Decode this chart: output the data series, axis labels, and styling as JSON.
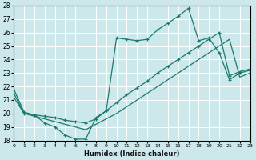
{
  "xlabel": "Humidex (Indice chaleur)",
  "bg_color": "#cde8ea",
  "grid_color": "#ffffff",
  "line_color": "#1a7a6e",
  "x_min": 0,
  "x_max": 23,
  "y_min": 18,
  "y_max": 28,
  "line1_x": [
    0,
    1,
    2,
    3,
    4,
    5,
    6,
    7,
    8,
    9,
    10,
    11,
    12,
    13,
    14,
    15,
    16,
    17,
    18,
    19,
    20,
    21,
    22,
    23
  ],
  "line1_y": [
    21.8,
    20.1,
    19.9,
    19.3,
    19.0,
    18.4,
    18.1,
    18.1,
    19.7,
    20.2,
    25.6,
    25.5,
    25.4,
    25.5,
    26.2,
    26.7,
    27.2,
    27.8,
    25.4,
    25.6,
    24.5,
    22.5,
    23.0,
    23.2
  ],
  "line2_x": [
    0,
    1,
    2,
    3,
    4,
    5,
    6,
    7,
    8,
    9,
    10,
    11,
    12,
    13,
    14,
    15,
    16,
    17,
    18,
    19,
    20,
    21,
    22,
    23
  ],
  "line2_y": [
    21.5,
    20.0,
    19.9,
    19.8,
    19.7,
    19.5,
    19.4,
    19.3,
    19.6,
    20.2,
    20.8,
    21.4,
    21.9,
    22.4,
    23.0,
    23.5,
    24.0,
    24.5,
    25.0,
    25.5,
    26.0,
    22.8,
    23.1,
    23.3
  ],
  "line3_x": [
    0,
    1,
    2,
    3,
    4,
    5,
    6,
    7,
    8,
    9,
    10,
    11,
    12,
    13,
    14,
    15,
    16,
    17,
    18,
    19,
    20,
    21,
    22,
    23
  ],
  "line3_y": [
    21.2,
    20.0,
    19.8,
    19.6,
    19.4,
    19.2,
    19.0,
    18.8,
    19.2,
    19.6,
    20.0,
    20.5,
    21.0,
    21.5,
    22.0,
    22.5,
    23.0,
    23.5,
    24.0,
    24.5,
    25.0,
    25.5,
    22.7,
    23.0
  ]
}
